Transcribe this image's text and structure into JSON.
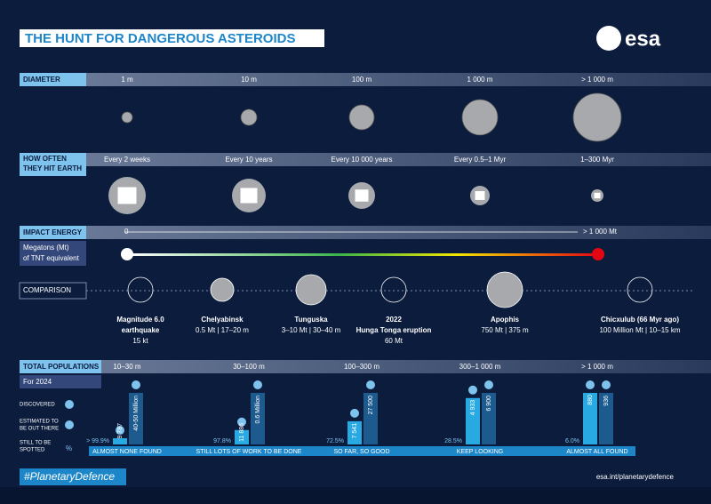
{
  "header": {
    "title": "THE HUNT FOR DANGEROUS ASTEROIDS",
    "logo": "esa"
  },
  "diameter": {
    "label": "DIAMETER",
    "values": [
      "1 m",
      "10 m",
      "100 m",
      "1 000 m",
      "> 1 000 m"
    ]
  },
  "frequency": {
    "label": [
      "HOW OFTEN",
      "THEY HIT EARTH"
    ],
    "values": [
      "Every 2 weeks",
      "Every 10 years",
      "Every 10 000 years",
      "Every 0.5–1 Myr",
      "1–300 Myr"
    ]
  },
  "energy": {
    "label": "IMPACT ENERGY",
    "unit": [
      "Megatons (Mt)",
      "of TNT equivalent"
    ],
    "start": "0",
    "end": "> 1 000 Mt"
  },
  "comparison": {
    "label": "COMPARISON",
    "items": [
      {
        "title": [
          "Magnitude 6.0",
          "earthquake"
        ],
        "detail": "15 kt"
      },
      {
        "title": [
          "Chelyabinsk"
        ],
        "detail": "0.5 Mt | 17–20 m"
      },
      {
        "title": [
          "Tunguska"
        ],
        "detail": "3–10 Mt | 30–40 m"
      },
      {
        "title": [
          "2022",
          "Hunga Tonga eruption"
        ],
        "detail": "60 Mt"
      },
      {
        "title": [
          "Apophis"
        ],
        "detail": "750 Mt | 375 m"
      },
      {
        "title": [
          "Chicxulub (66 Myr ago)"
        ],
        "detail": "100 Million Mt | 10–15 km"
      }
    ]
  },
  "populations": {
    "label": "TOTAL POPULATIONS",
    "year": "For 2024",
    "legend": {
      "discovered": "DISCOVERED",
      "estimated": [
        "ESTIMATED TO",
        "BE OUT THERE"
      ],
      "spotted": [
        "STILL TO BE",
        "SPOTTED"
      ],
      "unit": "%"
    },
    "groups": [
      {
        "range": "10–30 m",
        "discovered": "9 787",
        "estimated": "40-50 Million",
        "spotted": "> 99.9%",
        "status": "ALMOST NONE FOUND"
      },
      {
        "range": "30–100 m",
        "discovered": "11 886",
        "estimated": "0.6 Million",
        "spotted": "97.8%",
        "status": "STILL LOTS OF WORK TO BE DONE"
      },
      {
        "range": "100–300 m",
        "discovered": "7 541",
        "estimated": "27 500",
        "spotted": "72.5%",
        "status": "SO FAR, SO GOOD"
      },
      {
        "range": "300–1 000 m",
        "discovered": "4 933",
        "estimated": "6 900",
        "spotted": "28.5%",
        "status": "KEEP LOOKING"
      },
      {
        "range": "> 1 000 m",
        "discovered": "880",
        "estimated": "936",
        "spotted": "6.0%",
        "status": "ALMOST ALL FOUND"
      }
    ]
  },
  "footer": {
    "hashtag": "#PlanetaryDefence",
    "url": "esa.int/planetarydefence"
  }
}
